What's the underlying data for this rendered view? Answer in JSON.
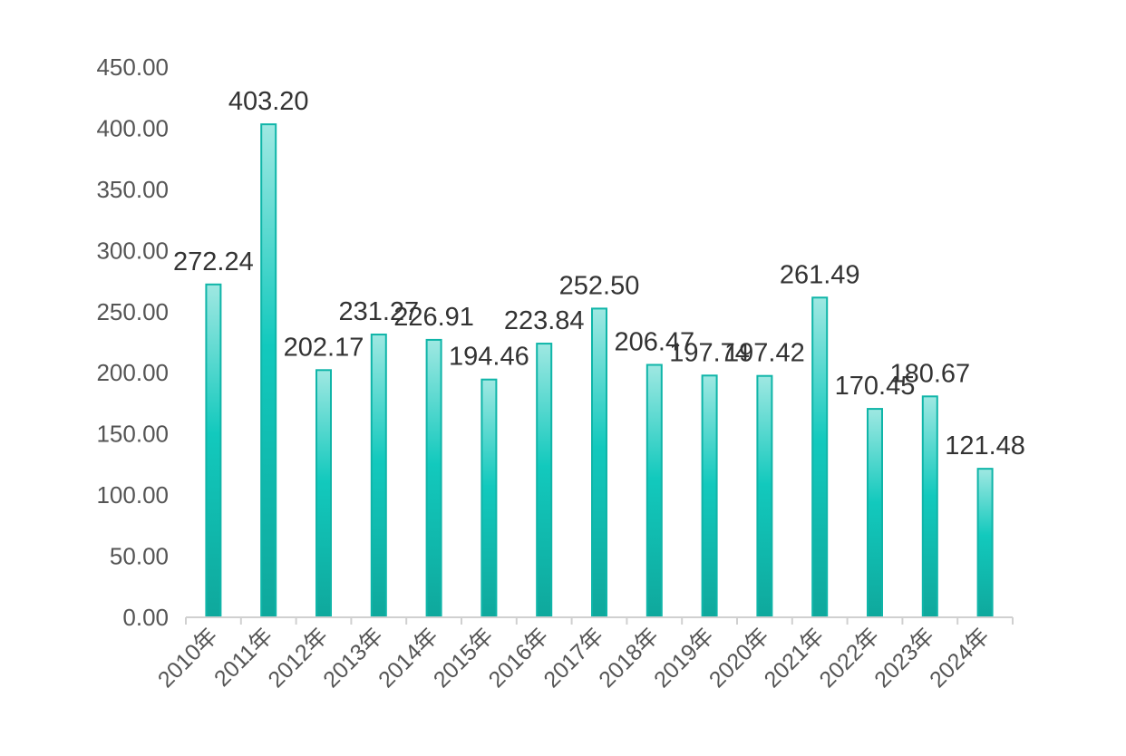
{
  "chart_data": {
    "type": "bar",
    "categories": [
      "2010年",
      "2011年",
      "2012年",
      "2013年",
      "2014年",
      "2015年",
      "2016年",
      "2017年",
      "2018年",
      "2019年",
      "2020年",
      "2021年",
      "2022年",
      "2023年",
      "2024年"
    ],
    "values": [
      272.24,
      403.2,
      202.17,
      231.27,
      226.91,
      194.46,
      223.84,
      252.5,
      206.47,
      197.74,
      197.42,
      261.49,
      170.45,
      180.67,
      121.48
    ],
    "value_labels": [
      "272.24",
      "403.20",
      "202.17",
      "231.27",
      "226.91",
      "194.46",
      "223.84",
      "252.50",
      "206.47",
      "197.74",
      "197.42",
      "261.49",
      "170.45",
      "180.67",
      "121.48"
    ],
    "y_ticks": [
      "0.00",
      "50.00",
      "100.00",
      "150.00",
      "200.00",
      "250.00",
      "300.00",
      "350.00",
      "400.00",
      "450.00"
    ],
    "ylim": [
      0,
      450
    ],
    "grid": false,
    "legend": "none",
    "colors": {
      "bar_light": "#9fe8e2",
      "bar_mid": "#12c9bd",
      "bar_dark": "#0fa89c",
      "bar_stroke": "#0fb5a8",
      "axis": "#d0d0d0"
    }
  }
}
